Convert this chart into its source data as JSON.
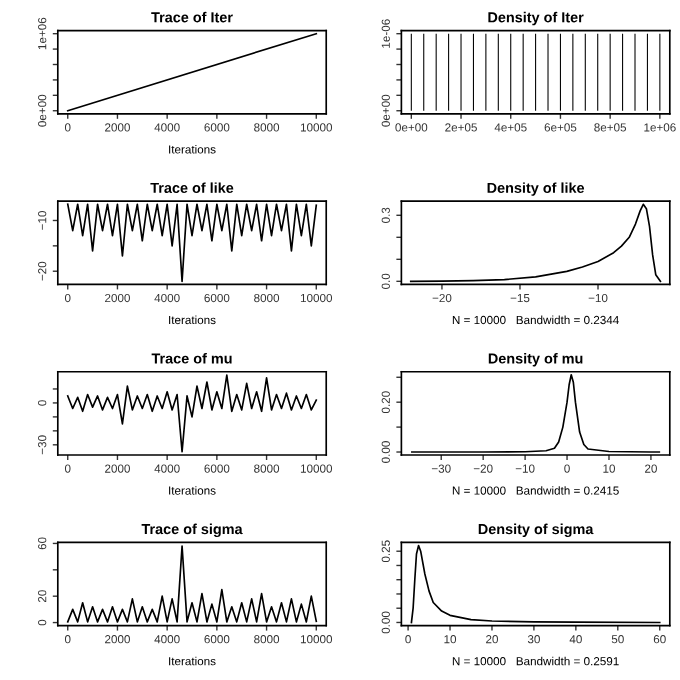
{
  "chart_data": [
    {
      "type": "line",
      "title": "Trace of Iter",
      "xlabel": "Iterations",
      "color": "#000000",
      "x": [
        0,
        10000
      ],
      "values": [
        0,
        1000000
      ],
      "xlim": [
        -400,
        10400
      ],
      "ylim": [
        -40000,
        1040000
      ],
      "xticks": [
        0,
        2000,
        4000,
        6000,
        8000,
        10000
      ],
      "yticks": [
        {
          "value": 0,
          "label": "0e+00"
        },
        {
          "value": 200000,
          "label": null
        },
        {
          "value": 400000,
          "label": null
        },
        {
          "value": 600000,
          "label": null
        },
        {
          "value": 800000,
          "label": null
        },
        {
          "value": 1000000,
          "label": "1e+06"
        }
      ]
    },
    {
      "type": "bar",
      "title": "Density of Iter",
      "color": "#000000",
      "x": [
        0,
        50000,
        100000,
        150000,
        200000,
        250000,
        300000,
        350000,
        400000,
        450000,
        500000,
        550000,
        600000,
        650000,
        700000,
        750000,
        800000,
        850000,
        900000,
        950000,
        1000000
      ],
      "values": [
        1e-06,
        1e-06,
        1e-06,
        1e-06,
        1e-06,
        1e-06,
        1e-06,
        1e-06,
        1e-06,
        1e-06,
        1e-06,
        1e-06,
        1e-06,
        1e-06,
        1e-06,
        1e-06,
        1e-06,
        1e-06,
        1e-06,
        1e-06,
        1e-06
      ],
      "xlim": [
        -40000,
        1040000
      ],
      "ylim": [
        -4e-08,
        1.04e-06
      ],
      "xticks": [
        {
          "value": 0,
          "label": "0e+00"
        },
        {
          "value": 200000,
          "label": "2e+05"
        },
        {
          "value": 400000,
          "label": "4e+05"
        },
        {
          "value": 600000,
          "label": "6e+05"
        },
        {
          "value": 800000,
          "label": "8e+05"
        },
        {
          "value": 1000000,
          "label": "1e+06"
        }
      ],
      "yticks": [
        {
          "value": 0,
          "label": "0e+00"
        },
        {
          "value": 2e-07,
          "label": null
        },
        {
          "value": 4e-07,
          "label": null
        },
        {
          "value": 6e-07,
          "label": null
        },
        {
          "value": 8e-07,
          "label": null
        },
        {
          "value": 1e-06,
          "label": "1e-06"
        }
      ]
    },
    {
      "type": "line",
      "title": "Trace of like",
      "xlabel": "Iterations",
      "color": "#000000",
      "x": [
        0,
        200,
        400,
        600,
        800,
        1000,
        1200,
        1400,
        1600,
        1800,
        2000,
        2200,
        2400,
        2600,
        2800,
        3000,
        3200,
        3400,
        3600,
        3800,
        4000,
        4200,
        4400,
        4600,
        4800,
        5000,
        5200,
        5400,
        5600,
        5800,
        6000,
        6200,
        6400,
        6600,
        6800,
        7000,
        7200,
        7400,
        7600,
        7800,
        8000,
        8200,
        8400,
        8600,
        8800,
        9000,
        9200,
        9400,
        9600,
        9800,
        10000
      ],
      "values": [
        -6.8,
        -12,
        -6.8,
        -13,
        -6.8,
        -16,
        -6.8,
        -12,
        -6.8,
        -13,
        -6.8,
        -17,
        -6.8,
        -12,
        -6.8,
        -14,
        -6.8,
        -12,
        -6.8,
        -13,
        -6.8,
        -15,
        -6.8,
        -22,
        -6.8,
        -13,
        -6.8,
        -12,
        -6.8,
        -14,
        -6.8,
        -12,
        -6.8,
        -16,
        -6.8,
        -13,
        -6.8,
        -12,
        -6.8,
        -14,
        -6.8,
        -13,
        -6.8,
        -12,
        -6.8,
        -16,
        -6.8,
        -13,
        -6.8,
        -15,
        -7
      ],
      "xlim": [
        -400,
        10400
      ],
      "ylim": [
        -22.6,
        -6.2
      ],
      "xticks": [
        0,
        2000,
        4000,
        6000,
        8000,
        10000
      ],
      "yticks": [
        {
          "value": -10,
          "label": "−10"
        },
        {
          "value": -15,
          "label": null
        },
        {
          "value": -20,
          "label": "−20"
        }
      ]
    },
    {
      "type": "line",
      "title": "Density of like",
      "xlabel": "N = 10000   Bandwidth = 0.2344",
      "color": "#000000",
      "x": [
        -22,
        -20,
        -18,
        -16,
        -14,
        -12,
        -11,
        -10,
        -9,
        -8.5,
        -8,
        -7.6,
        -7.3,
        -7.1,
        -6.9,
        -6.7,
        -6.5,
        -6.3,
        -6.0
      ],
      "values": [
        0,
        0.001,
        0.003,
        0.008,
        0.02,
        0.045,
        0.065,
        0.09,
        0.13,
        0.16,
        0.2,
        0.26,
        0.32,
        0.35,
        0.33,
        0.25,
        0.12,
        0.03,
        0
      ],
      "xlim": [
        -22.6,
        -5.4
      ],
      "ylim": [
        -0.014,
        0.364
      ],
      "xticks": [
        {
          "value": -20,
          "label": "−20"
        },
        {
          "value": -15,
          "label": "−15"
        },
        {
          "value": -10,
          "label": "−10"
        }
      ],
      "yticks": [
        {
          "value": 0,
          "label": "0.0"
        },
        {
          "value": 0.1,
          "label": null
        },
        {
          "value": 0.2,
          "label": null
        },
        {
          "value": 0.3,
          "label": "0.3"
        }
      ]
    },
    {
      "type": "line",
      "title": "Trace of mu",
      "xlabel": "Iterations",
      "color": "#000000",
      "x": [
        0,
        200,
        400,
        600,
        800,
        1000,
        1200,
        1400,
        1600,
        1800,
        2000,
        2200,
        2400,
        2600,
        2800,
        3000,
        3200,
        3400,
        3600,
        3800,
        4000,
        4200,
        4400,
        4600,
        4800,
        5000,
        5200,
        5400,
        5600,
        5800,
        6000,
        6200,
        6400,
        6600,
        6800,
        7000,
        7200,
        7400,
        7600,
        7800,
        8000,
        8200,
        8400,
        8600,
        8800,
        9000,
        9200,
        9400,
        9600,
        9800,
        10000
      ],
      "values": [
        5,
        -4,
        4,
        -6,
        6,
        -3,
        5,
        -5,
        4,
        -4,
        6,
        -15,
        12,
        -5,
        5,
        -4,
        6,
        -6,
        5,
        -4,
        8,
        -5,
        6,
        -35,
        5,
        -10,
        12,
        -4,
        15,
        -5,
        8,
        -4,
        20,
        -6,
        6,
        -5,
        14,
        -4,
        8,
        -6,
        18,
        -5,
        6,
        -4,
        7,
        -5,
        5,
        -4,
        6,
        -5,
        2
      ],
      "xlim": [
        -400,
        10400
      ],
      "ylim": [
        -37.3,
        22.3
      ],
      "xticks": [
        0,
        2000,
        4000,
        6000,
        8000,
        10000
      ],
      "yticks": [
        {
          "value": 10,
          "label": null
        },
        {
          "value": 0,
          "label": "0"
        },
        {
          "value": -10,
          "label": null
        },
        {
          "value": -20,
          "label": null
        },
        {
          "value": -30,
          "label": "−30"
        }
      ]
    },
    {
      "type": "line",
      "title": "Density of mu",
      "xlabel": "N = 10000   Bandwidth = 0.2415",
      "color": "#000000",
      "x": [
        -37,
        -30,
        -20,
        -10,
        -5,
        -3,
        -2,
        -1,
        0,
        0.5,
        1,
        1.5,
        2,
        3,
        4,
        5,
        10,
        20,
        22
      ],
      "values": [
        0,
        0,
        0,
        0.001,
        0.005,
        0.015,
        0.04,
        0.1,
        0.2,
        0.27,
        0.31,
        0.28,
        0.2,
        0.08,
        0.03,
        0.012,
        0.002,
        0,
        0
      ],
      "xlim": [
        -39.5,
        24.5
      ],
      "ylim": [
        -0.012,
        0.322
      ],
      "xticks": [
        {
          "value": -30,
          "label": "−30"
        },
        {
          "value": -20,
          "label": "−20"
        },
        {
          "value": -10,
          "label": "−10"
        },
        0,
        10,
        20
      ],
      "yticks": [
        {
          "value": 0,
          "label": "0.00"
        },
        {
          "value": 0.1,
          "label": null
        },
        {
          "value": 0.2,
          "label": "0.20"
        },
        {
          "value": 0.3,
          "label": null
        }
      ]
    },
    {
      "type": "line",
      "title": "Trace of sigma",
      "xlabel": "Iterations",
      "color": "#000000",
      "x": [
        0,
        200,
        400,
        600,
        800,
        1000,
        1200,
        1400,
        1600,
        1800,
        2000,
        2200,
        2400,
        2600,
        2800,
        3000,
        3200,
        3400,
        3600,
        3800,
        4000,
        4200,
        4400,
        4600,
        4800,
        5000,
        5200,
        5400,
        5600,
        5800,
        6000,
        6200,
        6400,
        6600,
        6800,
        7000,
        7200,
        7400,
        7600,
        7800,
        8000,
        8200,
        8400,
        8600,
        8800,
        9000,
        9200,
        9400,
        9600,
        9800,
        10000
      ],
      "values": [
        0.5,
        10,
        0.5,
        15,
        0.5,
        12,
        0.5,
        10,
        0.5,
        12,
        0.5,
        10,
        0.5,
        18,
        0.5,
        12,
        0.5,
        10,
        0.5,
        20,
        0.5,
        18,
        0.5,
        58,
        0.5,
        15,
        0.5,
        22,
        0.5,
        14,
        0.5,
        25,
        0.5,
        12,
        0.5,
        15,
        0.5,
        18,
        0.5,
        22,
        0.5,
        12,
        0.5,
        15,
        0.5,
        18,
        0.5,
        14,
        0.5,
        20,
        1
      ],
      "xlim": [
        -400,
        10400
      ],
      "ylim": [
        -2.3,
        60.8
      ],
      "xticks": [
        0,
        2000,
        4000,
        6000,
        8000,
        10000
      ],
      "yticks": [
        0,
        20,
        {
          "value": 40,
          "label": null
        },
        60
      ]
    },
    {
      "type": "line",
      "title": "Density of sigma",
      "xlabel": "N = 10000   Bandwidth = 0.2591",
      "color": "#000000",
      "x": [
        0.8,
        1.2,
        1.6,
        2,
        2.5,
        3,
        4,
        5,
        6,
        8,
        10,
        15,
        20,
        30,
        40,
        60
      ],
      "values": [
        0,
        0.05,
        0.15,
        0.24,
        0.27,
        0.25,
        0.17,
        0.11,
        0.07,
        0.04,
        0.025,
        0.01,
        0.005,
        0.002,
        0.001,
        0
      ],
      "xlim": [
        -1.6,
        62.4
      ],
      "ylim": [
        -0.011,
        0.281
      ],
      "xticks": [
        0,
        10,
        20,
        30,
        40,
        50,
        60
      ],
      "yticks": [
        {
          "value": 0,
          "label": "0.00"
        },
        {
          "value": 0.05,
          "label": null
        },
        {
          "value": 0.1,
          "label": null
        },
        {
          "value": 0.15,
          "label": null
        },
        {
          "value": 0.2,
          "label": null
        },
        {
          "value": 0.25,
          "label": "0.25"
        }
      ]
    }
  ]
}
